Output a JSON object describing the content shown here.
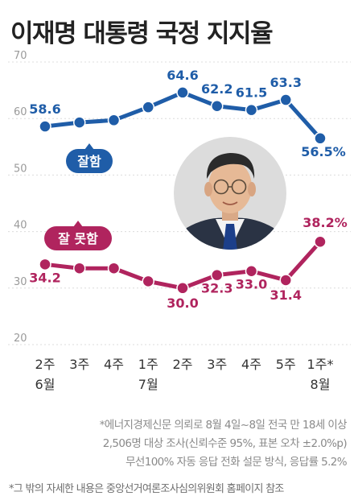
{
  "title": "이재명 대통령 국정 지지율",
  "chart_data": {
    "type": "line",
    "categories": [
      "2주\n6월",
      "3주",
      "4주",
      "1주\n7월",
      "2주",
      "3주",
      "4주",
      "5주",
      "1주*\n8월"
    ],
    "ylim": [
      20,
      70
    ],
    "yticks": [
      20,
      30,
      40,
      50,
      60,
      70
    ],
    "series": [
      {
        "name": "잘함",
        "color": "#1f5da8",
        "values": [
          58.6,
          59.3,
          59.7,
          62.0,
          64.6,
          62.2,
          61.5,
          63.3,
          56.5
        ],
        "labels": [
          "58.6",
          "",
          "",
          "",
          "64.6",
          "62.2",
          "61.5",
          "63.3",
          "56.5%"
        ]
      },
      {
        "name": "잘 못함",
        "color": "#b0245e",
        "values": [
          34.2,
          33.5,
          33.5,
          31.2,
          30.0,
          32.3,
          33.0,
          31.4,
          38.2
        ],
        "labels": [
          "34.2",
          "",
          "",
          "",
          "30.0",
          "32.3",
          "33.0",
          "31.4",
          "38.2%"
        ]
      }
    ],
    "grid": true
  },
  "notes": [
    "*에너지경제신문 의뢰로 8월 4일~8일 전국 만 18세 이상",
    "2,506명 대상 조사(신뢰수준 95%, 표본 오차 ±2.0%p)",
    "무선100% 자동 응답 전화 설문 방식, 응답률 5.2%"
  ],
  "footnote": "*그 밖의 자세한 내용은 중앙선거여론조사심의위원회 홈페이지 참조",
  "portrait": {
    "icon": "president-portrait",
    "bg": "#dcdcdc"
  }
}
